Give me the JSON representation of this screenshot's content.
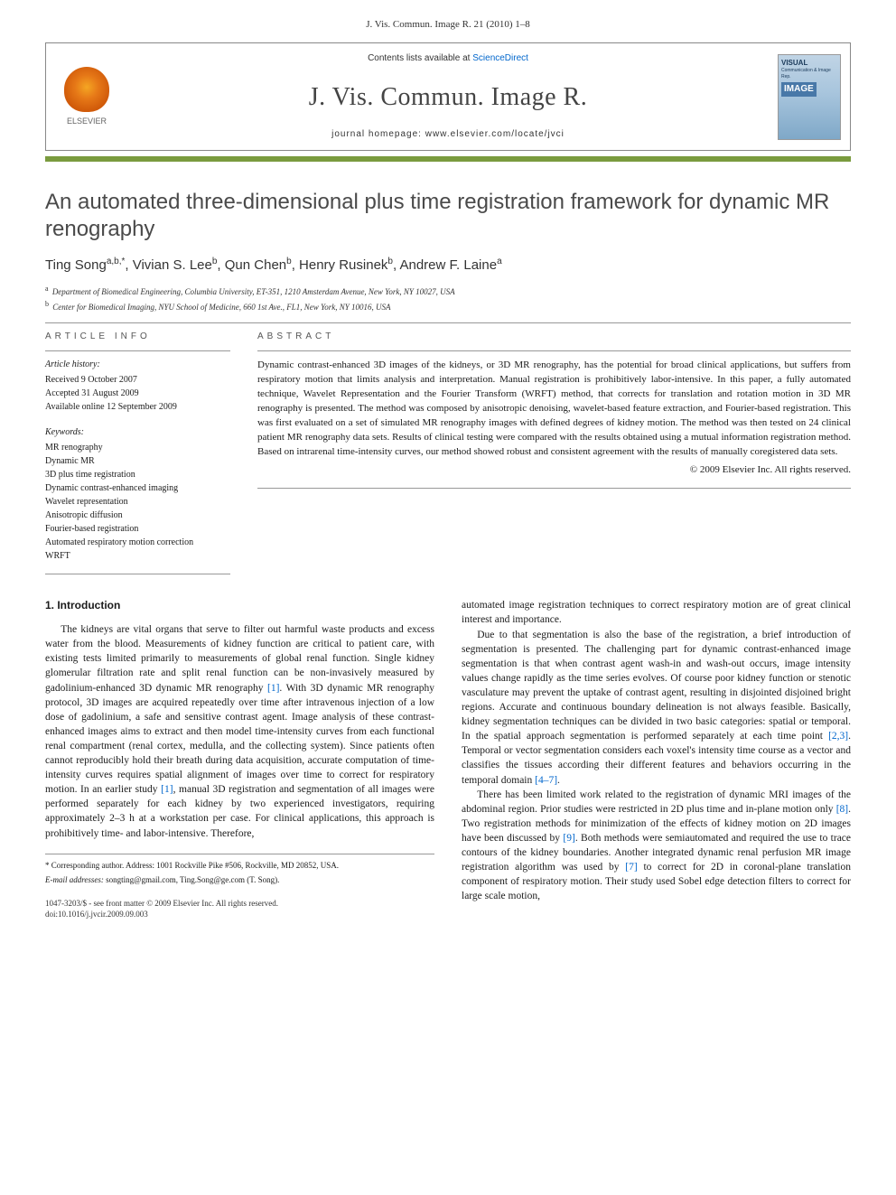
{
  "journal_ref": "J. Vis. Commun. Image R. 21 (2010) 1–8",
  "header": {
    "contents_prefix": "Contents lists available at ",
    "contents_link": "ScienceDirect",
    "journal_name": "J. Vis. Commun. Image R.",
    "homepage_prefix": "journal homepage: ",
    "homepage_url": "www.elsevier.com/locate/jvci",
    "publisher_text": "ELSEVIER",
    "cover_text1": "VISUAL",
    "cover_text2": "IMAGE"
  },
  "colors": {
    "accent_bar": "#7a9b3e",
    "link": "#0066cc",
    "title": "#4a4a4a",
    "elsevier_orange": "#e67817",
    "cover_bg": "#C0D4E5"
  },
  "title": "An automated three-dimensional plus time registration framework for dynamic MR renography",
  "authors_html": "Ting Song<sup>a,b,*</sup>, Vivian S. Lee<sup>b</sup>, Qun Chen<sup>b</sup>, Henry Rusinek<sup>b</sup>, Andrew F. Laine<sup>a</sup>",
  "affiliations": [
    {
      "sup": "a",
      "text": "Department of Biomedical Engineering, Columbia University, ET-351, 1210 Amsterdam Avenue, New York, NY 10027, USA"
    },
    {
      "sup": "b",
      "text": "Center for Biomedical Imaging, NYU School of Medicine, 660 1st Ave., FL1, New York, NY 10016, USA"
    }
  ],
  "article_info_label": "ARTICLE INFO",
  "history_label": "Article history:",
  "history": [
    "Received 9 October 2007",
    "Accepted 31 August 2009",
    "Available online 12 September 2009"
  ],
  "keywords_label": "Keywords:",
  "keywords": [
    "MR renography",
    "Dynamic MR",
    "3D plus time registration",
    "Dynamic contrast-enhanced imaging",
    "Wavelet representation",
    "Anisotropic diffusion",
    "Fourier-based registration",
    "Automated respiratory motion correction",
    "WRFT"
  ],
  "abstract_label": "ABSTRACT",
  "abstract_text": "Dynamic contrast-enhanced 3D images of the kidneys, or 3D MR renography, has the potential for broad clinical applications, but suffers from respiratory motion that limits analysis and interpretation. Manual registration is prohibitively labor-intensive. In this paper, a fully automated technique, Wavelet Representation and the Fourier Transform (WRFT) method, that corrects for translation and rotation motion in 3D MR renography is presented. The method was composed by anisotropic denoising, wavelet-based feature extraction, and Fourier-based registration. This was first evaluated on a set of simulated MR renography images with defined degrees of kidney motion. The method was then tested on 24 clinical patient MR renography data sets. Results of clinical testing were compared with the results obtained using a mutual information registration method. Based on intrarenal time-intensity curves, our method showed robust and consistent agreement with the results of manually coregistered data sets.",
  "copyright": "© 2009 Elsevier Inc. All rights reserved.",
  "intro_heading": "1. Introduction",
  "left_paras": [
    "The kidneys are vital organs that serve to filter out harmful waste products and excess water from the blood. Measurements of kidney function are critical to patient care, with existing tests limited primarily to measurements of global renal function. Single kidney glomerular filtration rate and split renal function can be non-invasively measured by gadolinium-enhanced 3D dynamic MR renography [1]. With 3D dynamic MR renography protocol, 3D images are acquired repeatedly over time after intravenous injection of a low dose of gadolinium, a safe and sensitive contrast agent. Image analysis of these contrast-enhanced images aims to extract and then model time-intensity curves from each functional renal compartment (renal cortex, medulla, and the collecting system). Since patients often cannot reproducibly hold their breath during data acquisition, accurate computation of time-intensity curves requires spatial alignment of images over time to correct for respiratory motion. In an earlier study [1], manual 3D registration and segmentation of all images were performed separately for each kidney by two experienced investigators, requiring approximately 2–3 h at a workstation per case. For clinical applications, this approach is prohibitively time- and labor-intensive. Therefore,"
  ],
  "right_paras": [
    "automated image registration techniques to correct respiratory motion are of great clinical interest and importance.",
    "Due to that segmentation is also the base of the registration, a brief introduction of segmentation is presented. The challenging part for dynamic contrast-enhanced image segmentation is that when contrast agent wash-in and wash-out occurs, image intensity values change rapidly as the time series evolves. Of course poor kidney function or stenotic vasculature may prevent the uptake of contrast agent, resulting in disjointed disjoined bright regions. Accurate and continuous boundary delineation is not always feasible. Basically, kidney segmentation techniques can be divided in two basic categories: spatial or temporal. In the spatial approach segmentation is performed separately at each time point [2,3]. Temporal or vector segmentation considers each voxel's intensity time course as a vector and classifies the tissues according their different features and behaviors occurring in the temporal domain [4–7].",
    "There has been limited work related to the registration of dynamic MRI images of the abdominal region. Prior studies were restricted in 2D plus time and in-plane motion only [8]. Two registration methods for minimization of the effects of kidney motion on 2D images have been discussed by [9]. Both methods were semiautomated and required the use to trace contours of the kidney boundaries. Another integrated dynamic renal perfusion MR image registration algorithm was used by [7] to correct for 2D in coronal-plane translation component of respiratory motion. Their study used Sobel edge detection filters to correct for large scale motion,"
  ],
  "footnotes": {
    "corresponding": "* Corresponding author. Address: 1001 Rockville Pike #506, Rockville, MD 20852, USA.",
    "email_label": "E-mail addresses:",
    "emails": "songting@gmail.com, Ting.Song@ge.com (T. Song)."
  },
  "doi": {
    "line1": "1047-3203/$ - see front matter © 2009 Elsevier Inc. All rights reserved.",
    "line2": "doi:10.1016/j.jvcir.2009.09.003"
  }
}
